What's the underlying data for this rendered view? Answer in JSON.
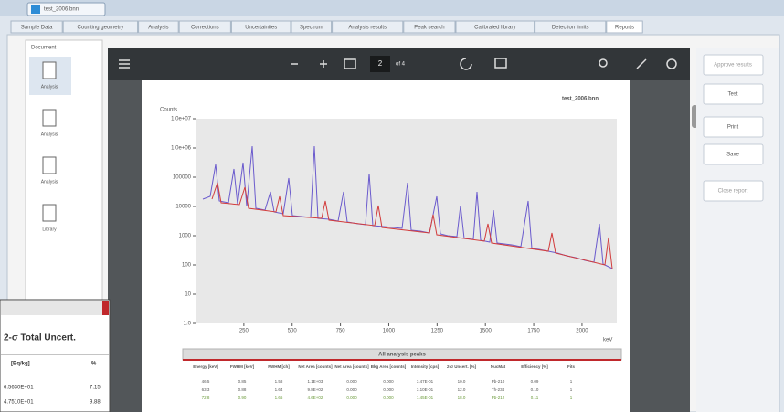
{
  "window": {
    "tab": "test_2006.bnn"
  },
  "tabs": [
    "Sample Data",
    "Counting geometry",
    "Analysis",
    "Corrections",
    "Uncertainties",
    "Spectrum",
    "Analysis results",
    "Peak search",
    "Calibrated library",
    "Detection limits",
    "Reports"
  ],
  "documents": {
    "title": "Document",
    "items": [
      "Analysis",
      "Analysis",
      "Analysis",
      "Library"
    ]
  },
  "viewer": {
    "page": "2",
    "of": "of 4"
  },
  "report": {
    "file": "test_2006.bnn"
  },
  "chart_data": {
    "type": "line",
    "ylabel": "Counts",
    "xlabel": "keV",
    "log_y": true,
    "xlim": [
      0,
      2180
    ],
    "xticks": [
      250,
      500,
      750,
      1000,
      1250,
      1500,
      1750,
      2000
    ],
    "ylim": [
      1,
      10000000
    ],
    "yticks": [
      {
        "value": 1,
        "label": "1.0"
      },
      10,
      100,
      1000,
      10000,
      100000,
      {
        "value": 1000000,
        "label": "1.0e+06"
      },
      {
        "value": 10000000,
        "label": "1.0e+07"
      }
    ]
  },
  "peaks_table": {
    "title": "All analysis peaks",
    "header": [
      "Energy [keV]",
      "FWHM [keV]",
      "FWHM [ch]",
      "Net Area [counts]",
      "Net Area [counts]",
      "Bkg Area [counts]",
      "Intensity [cps]",
      "2-σ Uncert. [%]",
      "NucMat",
      "Efficiency [%]",
      "Fits"
    ],
    "rows": [
      [
        "46.5",
        "0.85",
        "1.58",
        "1.1E+03",
        "0.000",
        "0.000",
        "3.47E-01",
        "10.0",
        "Pb-210",
        "0.09",
        "1"
      ],
      [
        "63.3",
        "0.88",
        "1.64",
        "9.8E+02",
        "0.000",
        "0.000",
        "3.10E-01",
        "12.0",
        "Th-234",
        "0.10",
        "1"
      ],
      [
        "72.8",
        "0.90",
        "1.66",
        "4.6E+02",
        "0.000",
        "0.000",
        "1.45E-01",
        "18.0",
        "Pb-212",
        "0.11",
        "1"
      ]
    ]
  },
  "actions": [
    "Approve results",
    "Test",
    "Print",
    "Save",
    "Close report"
  ],
  "inset": {
    "title": "2-σ Total Uncert.",
    "header": [
      "[Bq/kg]",
      "%"
    ],
    "rows": [
      [
        "6.5630E+01",
        "7.15"
      ],
      [
        "4.7510E+01",
        "9.88"
      ]
    ]
  }
}
